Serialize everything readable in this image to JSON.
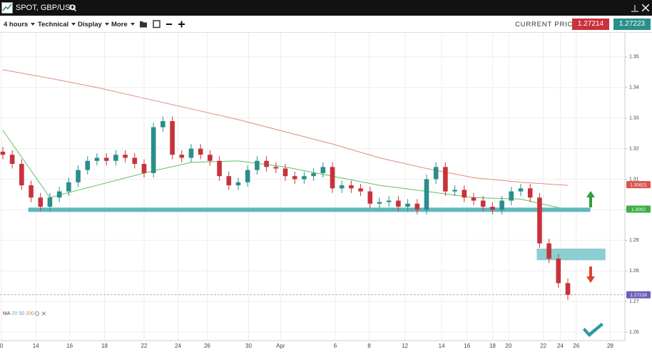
{
  "window": {
    "title": "SPOT, GBP/USD"
  },
  "toolbar": {
    "items": [
      "4 hours",
      "Technical",
      "Display",
      "More"
    ],
    "current_price_label": "CURRENT PRICE:",
    "bid": "1.27214",
    "ask": "1.27223"
  },
  "chart_data": {
    "type": "candlestick",
    "up_color": "#2a8e8a",
    "down_color": "#c8323a",
    "x": [
      0,
      1,
      2,
      3,
      4,
      5,
      6,
      7,
      8,
      9,
      10,
      11,
      12,
      13,
      14,
      15,
      16,
      17,
      18,
      19,
      20,
      21,
      22,
      23,
      24,
      25,
      26,
      27,
      28,
      29,
      30,
      31,
      32,
      33,
      34,
      35,
      36,
      37,
      38,
      39,
      40,
      41,
      42,
      43,
      44,
      45,
      46,
      47,
      48,
      49,
      50,
      51,
      52,
      53,
      54,
      55,
      56,
      57,
      58,
      59,
      60
    ],
    "open": [
      1.319,
      1.318,
      1.315,
      1.308,
      1.304,
      1.301,
      1.304,
      1.306,
      1.309,
      1.313,
      1.316,
      1.317,
      1.316,
      1.318,
      1.317,
      1.315,
      1.312,
      1.327,
      1.329,
      1.318,
      1.317,
      1.32,
      1.318,
      1.316,
      1.311,
      1.308,
      1.309,
      1.313,
      1.316,
      1.314,
      1.3135,
      1.311,
      1.31,
      1.311,
      1.312,
      1.314,
      1.307,
      1.308,
      1.307,
      1.306,
      1.302,
      1.3025,
      1.303,
      1.301,
      1.302,
      1.3,
      1.31,
      1.314,
      1.306,
      1.3065,
      1.304,
      1.303,
      1.301,
      1.3,
      1.303,
      1.306,
      1.307,
      1.304,
      1.289,
      1.284,
      1.276
    ],
    "high": [
      1.3205,
      1.3195,
      1.3165,
      1.3095,
      1.3055,
      1.3055,
      1.3075,
      1.3105,
      1.3145,
      1.3175,
      1.3185,
      1.3185,
      1.3195,
      1.3195,
      1.3185,
      1.3165,
      1.3285,
      1.3305,
      1.3305,
      1.3195,
      1.3215,
      1.3215,
      1.3195,
      1.3175,
      1.3125,
      1.3105,
      1.3145,
      1.3175,
      1.3175,
      1.3155,
      1.315,
      1.3125,
      1.3125,
      1.3135,
      1.3155,
      1.3155,
      1.3095,
      1.3095,
      1.3085,
      1.3075,
      1.304,
      1.3045,
      1.3045,
      1.3035,
      1.3035,
      1.3115,
      1.3155,
      1.3155,
      1.308,
      1.308,
      1.3055,
      1.3045,
      1.3025,
      1.3045,
      1.3075,
      1.3085,
      1.3085,
      1.3055,
      1.2905,
      1.2855,
      1.2775
    ],
    "low": [
      1.3165,
      1.3135,
      1.3065,
      1.3025,
      1.2995,
      1.2995,
      1.3025,
      1.3045,
      1.3075,
      1.3115,
      1.3145,
      1.3145,
      1.3145,
      1.3155,
      1.3135,
      1.3105,
      1.3105,
      1.3255,
      1.3165,
      1.3155,
      1.3155,
      1.3165,
      1.3145,
      1.3095,
      1.3065,
      1.3065,
      1.3075,
      1.3115,
      1.3125,
      1.312,
      1.3095,
      1.3085,
      1.3085,
      1.3095,
      1.3105,
      1.3055,
      1.3055,
      1.3055,
      1.3045,
      1.3005,
      1.3005,
      1.301,
      1.2995,
      1.2995,
      1.2985,
      1.2985,
      1.3085,
      1.3045,
      1.3045,
      1.3025,
      1.3015,
      1.2995,
      1.2985,
      1.2985,
      1.3015,
      1.3045,
      1.3025,
      1.2875,
      1.2825,
      1.2745,
      1.2705
    ],
    "close": [
      1.318,
      1.315,
      1.308,
      1.304,
      1.301,
      1.304,
      1.306,
      1.309,
      1.313,
      1.316,
      1.317,
      1.316,
      1.318,
      1.317,
      1.315,
      1.312,
      1.327,
      1.329,
      1.318,
      1.317,
      1.32,
      1.318,
      1.316,
      1.311,
      1.308,
      1.309,
      1.313,
      1.316,
      1.314,
      1.3135,
      1.311,
      1.31,
      1.311,
      1.312,
      1.314,
      1.307,
      1.308,
      1.307,
      1.306,
      1.302,
      1.3025,
      1.303,
      1.301,
      1.302,
      1.3,
      1.31,
      1.314,
      1.306,
      1.3065,
      1.304,
      1.303,
      1.301,
      1.3,
      1.303,
      1.306,
      1.307,
      1.304,
      1.289,
      1.284,
      1.276,
      1.2722
    ],
    "moving_averages": [
      {
        "color": "#e38b80",
        "x": [
          0,
          5,
          10,
          15,
          20,
          25,
          30,
          35,
          40,
          45,
          50,
          55,
          60
        ],
        "values": [
          1.3458,
          1.343,
          1.34,
          1.3365,
          1.333,
          1.3295,
          1.3255,
          1.3215,
          1.317,
          1.3135,
          1.3105,
          1.309,
          1.308
        ]
      },
      {
        "color": "#5fbf62",
        "x": [
          0,
          5,
          10,
          15,
          20,
          25,
          30,
          35,
          40,
          45,
          50,
          55,
          60
        ],
        "values": [
          1.326,
          1.304,
          1.308,
          1.312,
          1.3155,
          1.316,
          1.314,
          1.311,
          1.308,
          1.306,
          1.304,
          1.3035,
          1.3
        ]
      }
    ],
    "ma_legend": {
      "label": "MA",
      "periods": [
        {
          "text": "20",
          "color": "#5fbf62"
        },
        {
          "text": "50",
          "color": "#5b8fd6"
        },
        {
          "text": "200",
          "color": "#e07a6a"
        }
      ]
    },
    "support": {
      "value": 1.3,
      "x": [
        2.7,
        62.4
      ],
      "color": "#5fb8bd"
    },
    "zone": {
      "low": 1.2835,
      "high": 1.2873,
      "x": [
        56.7,
        64
      ],
      "color": "#8ccfd2"
    },
    "last_price_line": 1.27218,
    "price_tags": [
      {
        "value": 1.30821,
        "label": "1.30821",
        "color": "#d9534f"
      },
      {
        "value": 1.3002,
        "label": "1.3002",
        "color": "#3fae49"
      },
      {
        "value": 1.27218,
        "label": "1.27218",
        "color": "#6a5fb5"
      }
    ],
    "xlim": [
      -0.3,
      66.06
    ],
    "ylim": [
      1.2572,
      1.3579
    ],
    "xticks": [
      {
        "value": -0.15,
        "label": "0"
      },
      {
        "value": 3.5,
        "label": "14"
      },
      {
        "value": 7.1,
        "label": "16"
      },
      {
        "value": 10.8,
        "label": "18"
      },
      {
        "value": 15,
        "label": "22"
      },
      {
        "value": 18.6,
        "label": "24"
      },
      {
        "value": 21.7,
        "label": "26"
      },
      {
        "value": 26.1,
        "label": "30"
      },
      {
        "value": 29.5,
        "label": "Apr"
      },
      {
        "value": 35.3,
        "label": "6"
      },
      {
        "value": 38.9,
        "label": "8"
      },
      {
        "value": 42.7,
        "label": "12"
      },
      {
        "value": 46.6,
        "label": "14"
      },
      {
        "value": 49.3,
        "label": "16"
      },
      {
        "value": 52,
        "label": "18"
      },
      {
        "value": 53.7,
        "label": "20"
      },
      {
        "value": 57.4,
        "label": "22"
      },
      {
        "value": 59.2,
        "label": "24"
      },
      {
        "value": 60.9,
        "label": "26"
      },
      {
        "value": 64.5,
        "label": "28"
      }
    ],
    "yticks": [
      1.35,
      1.34,
      1.33,
      1.32,
      1.31,
      {
        "value": 1.3,
        "label": "1.30"
      },
      1.29,
      1.28,
      1.27,
      1.26
    ],
    "grid": true
  }
}
